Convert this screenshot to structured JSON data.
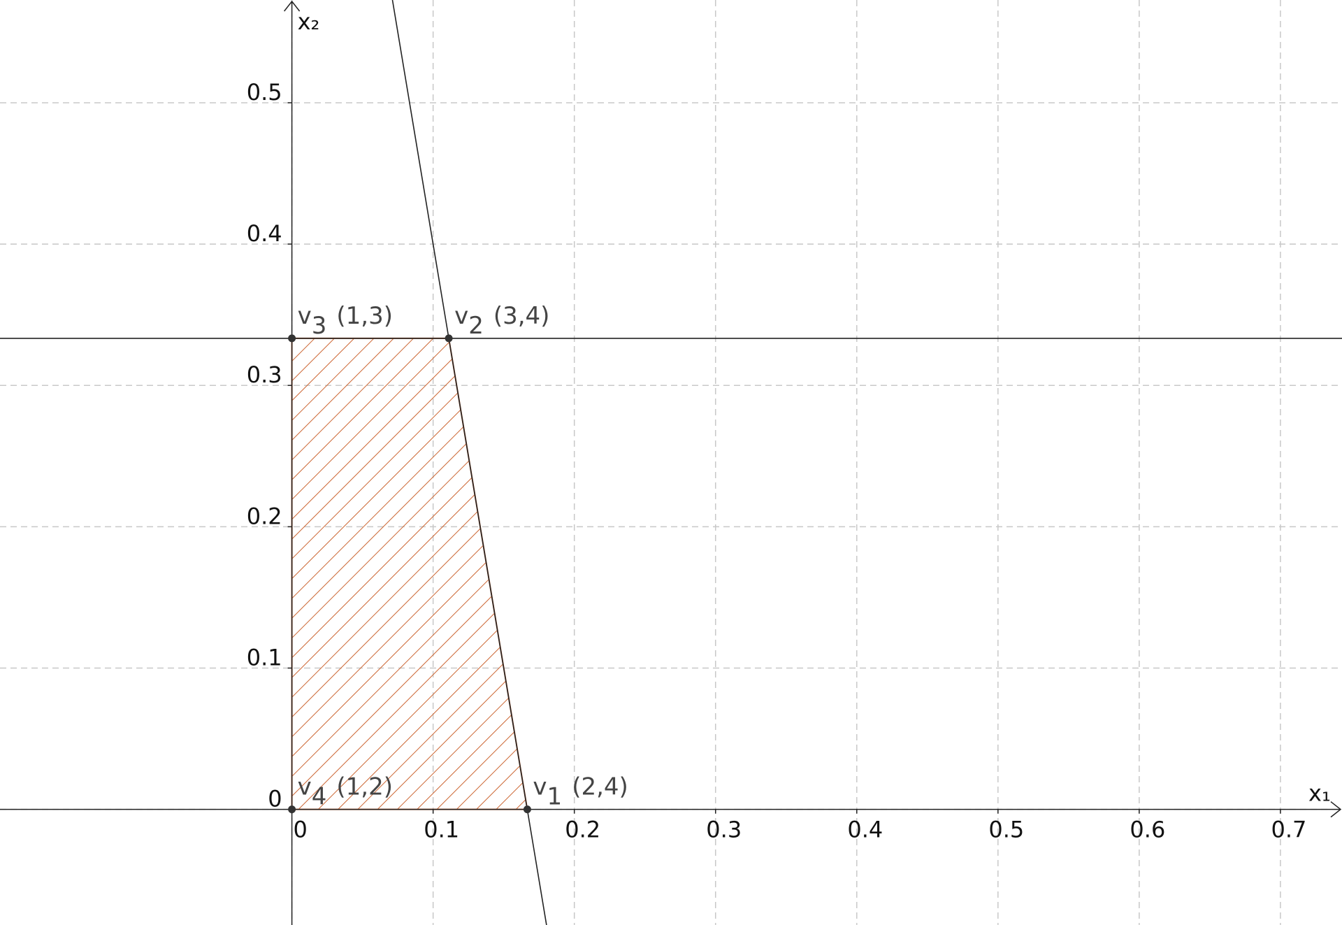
{
  "chart_data": {
    "type": "region",
    "x_label": "x₁",
    "y_label": "x₂",
    "xlim": [
      -0.2067,
      0.7436
    ],
    "ylim": [
      -0.0818,
      0.5727
    ],
    "xticks": [
      0,
      0.1,
      0.2,
      0.3,
      0.4,
      0.5,
      0.6,
      0.7
    ],
    "yticks": [
      0,
      0.1,
      0.2,
      0.3,
      0.4,
      0.5
    ],
    "grid": true,
    "region_color": "#cc6633",
    "line_color": "#222222",
    "point_color": "#333333",
    "lines": [
      {
        "x": [
          -0.2067,
          0.7436
        ],
        "y": [
          0.3333,
          0.3333
        ]
      },
      {
        "x": [
          0.0712,
          0.1803
        ],
        "y": [
          0.5727,
          -0.0818
        ]
      }
    ],
    "points": [
      {
        "name": "v",
        "sub": "1",
        "label": "(2,4)",
        "x": 0.1667,
        "y": 0
      },
      {
        "name": "v",
        "sub": "2",
        "label": "(3,4)",
        "x": 0.1111,
        "y": 0.3333
      },
      {
        "name": "v",
        "sub": "3",
        "label": "(1,3)",
        "x": 0,
        "y": 0.3333
      },
      {
        "name": "v",
        "sub": "4",
        "label": "(1,2)",
        "x": 0,
        "y": 0
      }
    ]
  }
}
